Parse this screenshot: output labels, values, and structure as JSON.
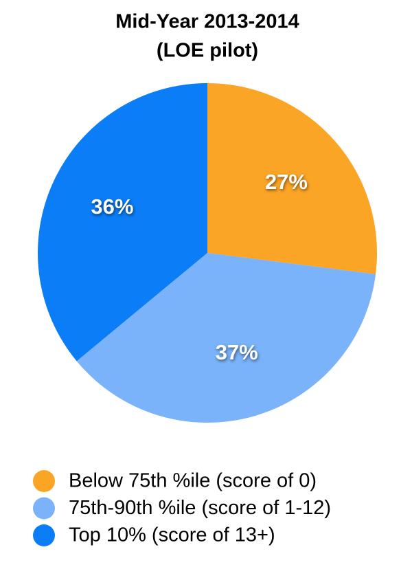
{
  "chart_data": {
    "type": "pie",
    "title": "Mid-Year 2013-2014",
    "subtitle": "(LOE pilot)",
    "categories": [
      "Below 75th %ile (score of 0)",
      "75th-90th %ile (score of 1-12)",
      "Top 10% (score of 13+)"
    ],
    "values": [
      27,
      37,
      36
    ],
    "value_labels": [
      "27%",
      "37%",
      "36%"
    ],
    "colors": [
      "#fba526",
      "#7ab3fa",
      "#0b7df6"
    ],
    "legend": "bottom"
  }
}
